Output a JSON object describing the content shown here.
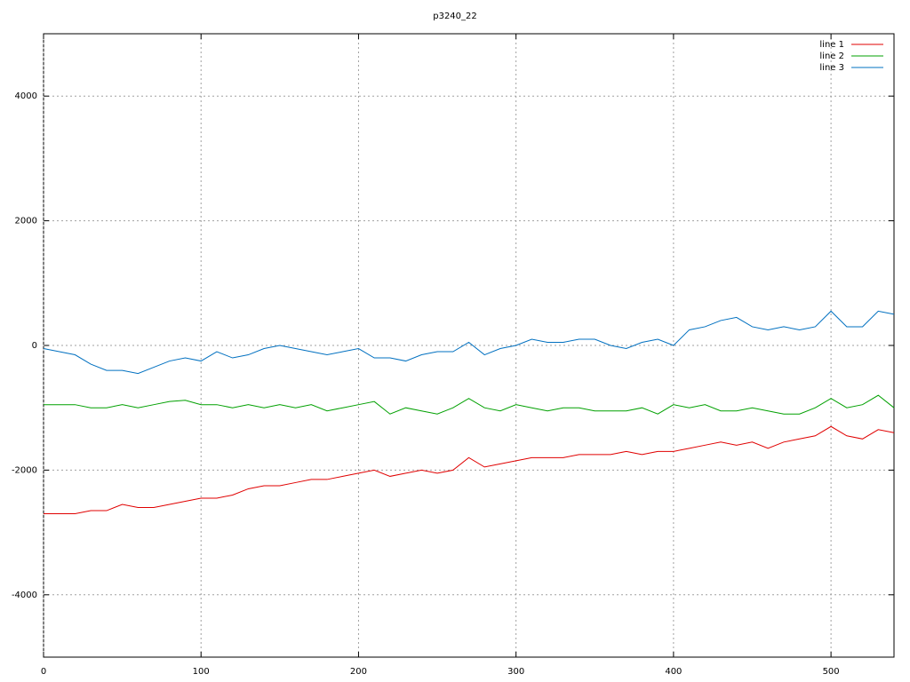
{
  "chart_data": {
    "type": "line",
    "title": "p3240_22",
    "x": [
      0,
      10,
      20,
      30,
      40,
      50,
      60,
      70,
      80,
      90,
      100,
      110,
      120,
      130,
      140,
      150,
      160,
      170,
      180,
      190,
      200,
      210,
      220,
      230,
      240,
      250,
      260,
      270,
      280,
      290,
      300,
      310,
      320,
      330,
      340,
      350,
      360,
      370,
      380,
      390,
      400,
      410,
      420,
      430,
      440,
      450,
      460,
      470,
      480,
      490,
      500,
      510,
      520,
      530,
      540
    ],
    "series": [
      {
        "name": "line 1",
        "color": "#e00000",
        "values": [
          -2700,
          -2700,
          -2700,
          -2650,
          -2650,
          -2550,
          -2600,
          -2600,
          -2550,
          -2500,
          -2450,
          -2450,
          -2400,
          -2300,
          -2250,
          -2250,
          -2200,
          -2150,
          -2150,
          -2100,
          -2050,
          -2000,
          -2100,
          -2050,
          -2000,
          -2050,
          -2000,
          -1800,
          -1950,
          -1900,
          -1850,
          -1800,
          -1800,
          -1800,
          -1750,
          -1750,
          -1750,
          -1700,
          -1750,
          -1700,
          -1700,
          -1650,
          -1600,
          -1550,
          -1600,
          -1550,
          -1650,
          -1550,
          -1500,
          -1450,
          -1300,
          -1450,
          -1500,
          -1350,
          -1400
        ]
      },
      {
        "name": "line 2",
        "color": "#00a000",
        "values": [
          -950,
          -950,
          -950,
          -1000,
          -1000,
          -950,
          -1000,
          -950,
          -900,
          -880,
          -950,
          -950,
          -1000,
          -950,
          -1000,
          -950,
          -1000,
          -950,
          -1050,
          -1000,
          -950,
          -900,
          -1100,
          -1000,
          -1050,
          -1100,
          -1000,
          -850,
          -1000,
          -1050,
          -950,
          -1000,
          -1050,
          -1000,
          -1000,
          -1050,
          -1050,
          -1050,
          -1000,
          -1100,
          -950,
          -1000,
          -950,
          -1050,
          -1050,
          -1000,
          -1050,
          -1100,
          -1100,
          -1000,
          -850,
          -1000,
          -950,
          -800,
          -1000
        ]
      },
      {
        "name": "line 3",
        "color": "#0070c0",
        "values": [
          -50,
          -100,
          -150,
          -300,
          -400,
          -400,
          -450,
          -350,
          -250,
          -200,
          -250,
          -100,
          -200,
          -150,
          -50,
          0,
          -50,
          -100,
          -150,
          -100,
          -50,
          -200,
          -200,
          -250,
          -150,
          -100,
          -100,
          50,
          -150,
          -50,
          0,
          100,
          50,
          50,
          100,
          100,
          0,
          -50,
          50,
          100,
          0,
          250,
          300,
          400,
          450,
          300,
          250,
          300,
          250,
          300,
          550,
          300,
          300,
          550,
          500
        ]
      }
    ],
    "xlim": [
      0,
      540
    ],
    "ylim": [
      -5000,
      5000
    ],
    "xticks": [
      0,
      100,
      200,
      300,
      400,
      500
    ],
    "yticks": [
      -4000,
      -2000,
      0,
      2000,
      4000
    ],
    "grid": true,
    "legend": "top-right"
  }
}
